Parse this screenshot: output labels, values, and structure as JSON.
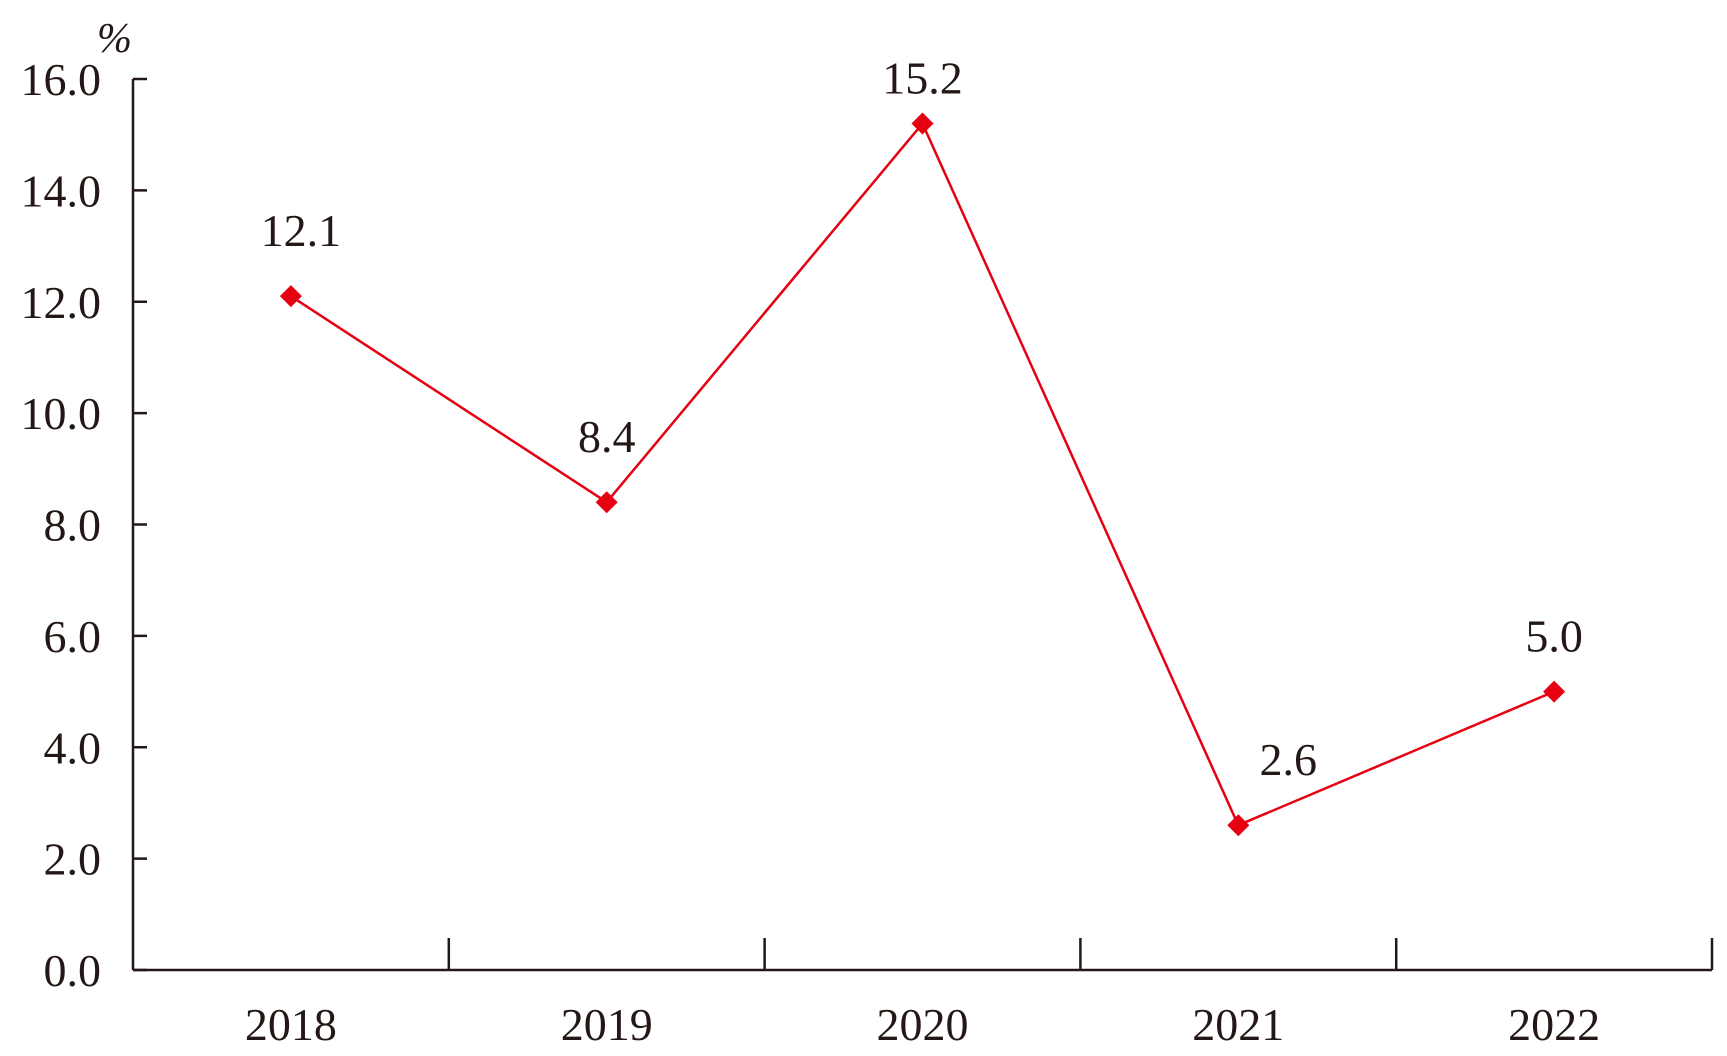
{
  "chart_data": {
    "type": "line",
    "title": "",
    "xlabel": "",
    "ylabel": "%",
    "categories": [
      "2018",
      "2019",
      "2020",
      "2021",
      "2022"
    ],
    "series": [
      {
        "values": [
          12.1,
          8.4,
          15.2,
          2.6,
          5.0
        ],
        "labels": [
          "12.1",
          "8.4",
          "15.2",
          "2.6",
          "5.0"
        ]
      }
    ],
    "ylim": [
      0,
      16
    ],
    "yticks": [
      "0.0",
      "2.0",
      "4.0",
      "6.0",
      "8.0",
      "10.0",
      "12.0",
      "14.0",
      "16.0"
    ],
    "grid": false,
    "legend": "none",
    "colors": {
      "series": "#e60012",
      "axis": "#231815"
    }
  }
}
